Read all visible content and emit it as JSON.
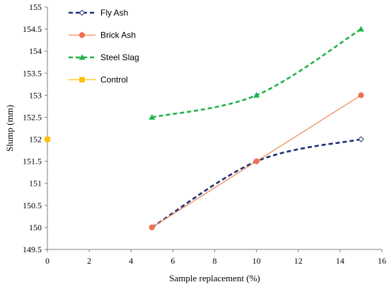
{
  "chart_data": {
    "type": "line",
    "title": "",
    "xlabel": "Sample replacement (%)",
    "ylabel": "Slump (mm)",
    "xlim": [
      0,
      16
    ],
    "ylim": [
      149.5,
      155
    ],
    "xticks": [
      0,
      2,
      4,
      6,
      8,
      10,
      12,
      14,
      16
    ],
    "yticks": [
      149.5,
      150,
      150.5,
      151,
      151.5,
      152,
      152.5,
      153,
      153.5,
      154,
      154.5,
      155
    ],
    "grid": false,
    "legend_position": "top-left",
    "series": [
      {
        "name": "Fly Ash",
        "x": [
          5,
          10,
          15
        ],
        "y": [
          150,
          151.5,
          152
        ],
        "color": "#1f2f75",
        "line_style": "dashed",
        "marker": "diamond",
        "marker_color": "#4472c4",
        "smooth": true
      },
      {
        "name": "Brick Ash",
        "x": [
          5,
          10,
          15
        ],
        "y": [
          150,
          151.5,
          153
        ],
        "color": "#f08c5a",
        "line_style": "solid",
        "marker": "circle",
        "marker_color": "#f06f4f",
        "smooth": false
      },
      {
        "name": "Steel Slag",
        "x": [
          5,
          10,
          15
        ],
        "y": [
          152.5,
          153,
          154.5
        ],
        "color": "#21b24b",
        "line_style": "dashed",
        "marker": "triangle",
        "marker_color": "#21b24b",
        "smooth": true
      },
      {
        "name": "Control",
        "x": [
          0
        ],
        "y": [
          152
        ],
        "color": "#ffc000",
        "line_style": "solid",
        "marker": "square",
        "marker_color": "#ffc000",
        "smooth": false
      }
    ]
  }
}
